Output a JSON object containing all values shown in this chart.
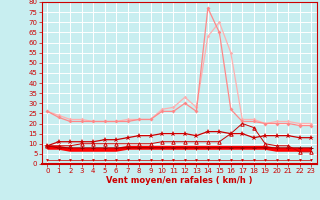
{
  "xlabel": "Vent moyen/en rafales ( km/h )",
  "bg_color": "#c8eef0",
  "grid_color": "#ffffff",
  "xlim": [
    -0.5,
    23.5
  ],
  "ylim": [
    0,
    80
  ],
  "yticks": [
    0,
    5,
    10,
    15,
    20,
    25,
    30,
    35,
    40,
    45,
    50,
    55,
    60,
    65,
    70,
    75,
    80
  ],
  "xticks": [
    0,
    1,
    2,
    3,
    4,
    5,
    6,
    7,
    8,
    9,
    10,
    11,
    12,
    13,
    14,
    15,
    16,
    17,
    18,
    19,
    20,
    21,
    22,
    23
  ],
  "hours": [
    0,
    1,
    2,
    3,
    4,
    5,
    6,
    7,
    8,
    9,
    10,
    11,
    12,
    13,
    14,
    15,
    16,
    17,
    18,
    19,
    20,
    21,
    22,
    23
  ],
  "series_light_gust": [
    26,
    24,
    22,
    22,
    21,
    21,
    21,
    22,
    22,
    22,
    27,
    28,
    33,
    28,
    63,
    70,
    55,
    22,
    22,
    20,
    21,
    21,
    20,
    20
  ],
  "series_med_gust": [
    26,
    23,
    21,
    21,
    21,
    21,
    21,
    21,
    22,
    22,
    26,
    26,
    30,
    26,
    77,
    65,
    27,
    21,
    21,
    20,
    20,
    20,
    19,
    19
  ],
  "series_avg_star": [
    9,
    11,
    11,
    11,
    11,
    12,
    12,
    13,
    14,
    14,
    15,
    15,
    15,
    14,
    16,
    16,
    15,
    15,
    13,
    14,
    14,
    14,
    13,
    13
  ],
  "series_red_heavy": [
    8,
    8,
    7,
    7,
    7,
    7,
    7,
    8,
    8,
    8,
    8,
    8,
    8,
    8,
    8,
    8,
    8,
    8,
    8,
    8,
    7,
    7,
    7,
    7
  ],
  "series_dark_low": [
    9,
    8,
    8,
    8,
    8,
    8,
    8,
    8,
    8,
    8,
    8,
    8,
    8,
    8,
    8,
    8,
    8,
    8,
    8,
    8,
    8,
    8,
    8,
    8
  ],
  "series_arrows": [
    2,
    2,
    2,
    2,
    2,
    2,
    2,
    2,
    2,
    2,
    2,
    2,
    2,
    2,
    2,
    2,
    2,
    2,
    2,
    2,
    2,
    2,
    2,
    2
  ],
  "series_triangle": [
    9,
    9,
    9,
    10,
    10,
    10,
    10,
    10,
    10,
    10,
    11,
    11,
    11,
    11,
    11,
    11,
    15,
    20,
    18,
    10,
    9,
    9,
    6,
    6
  ]
}
